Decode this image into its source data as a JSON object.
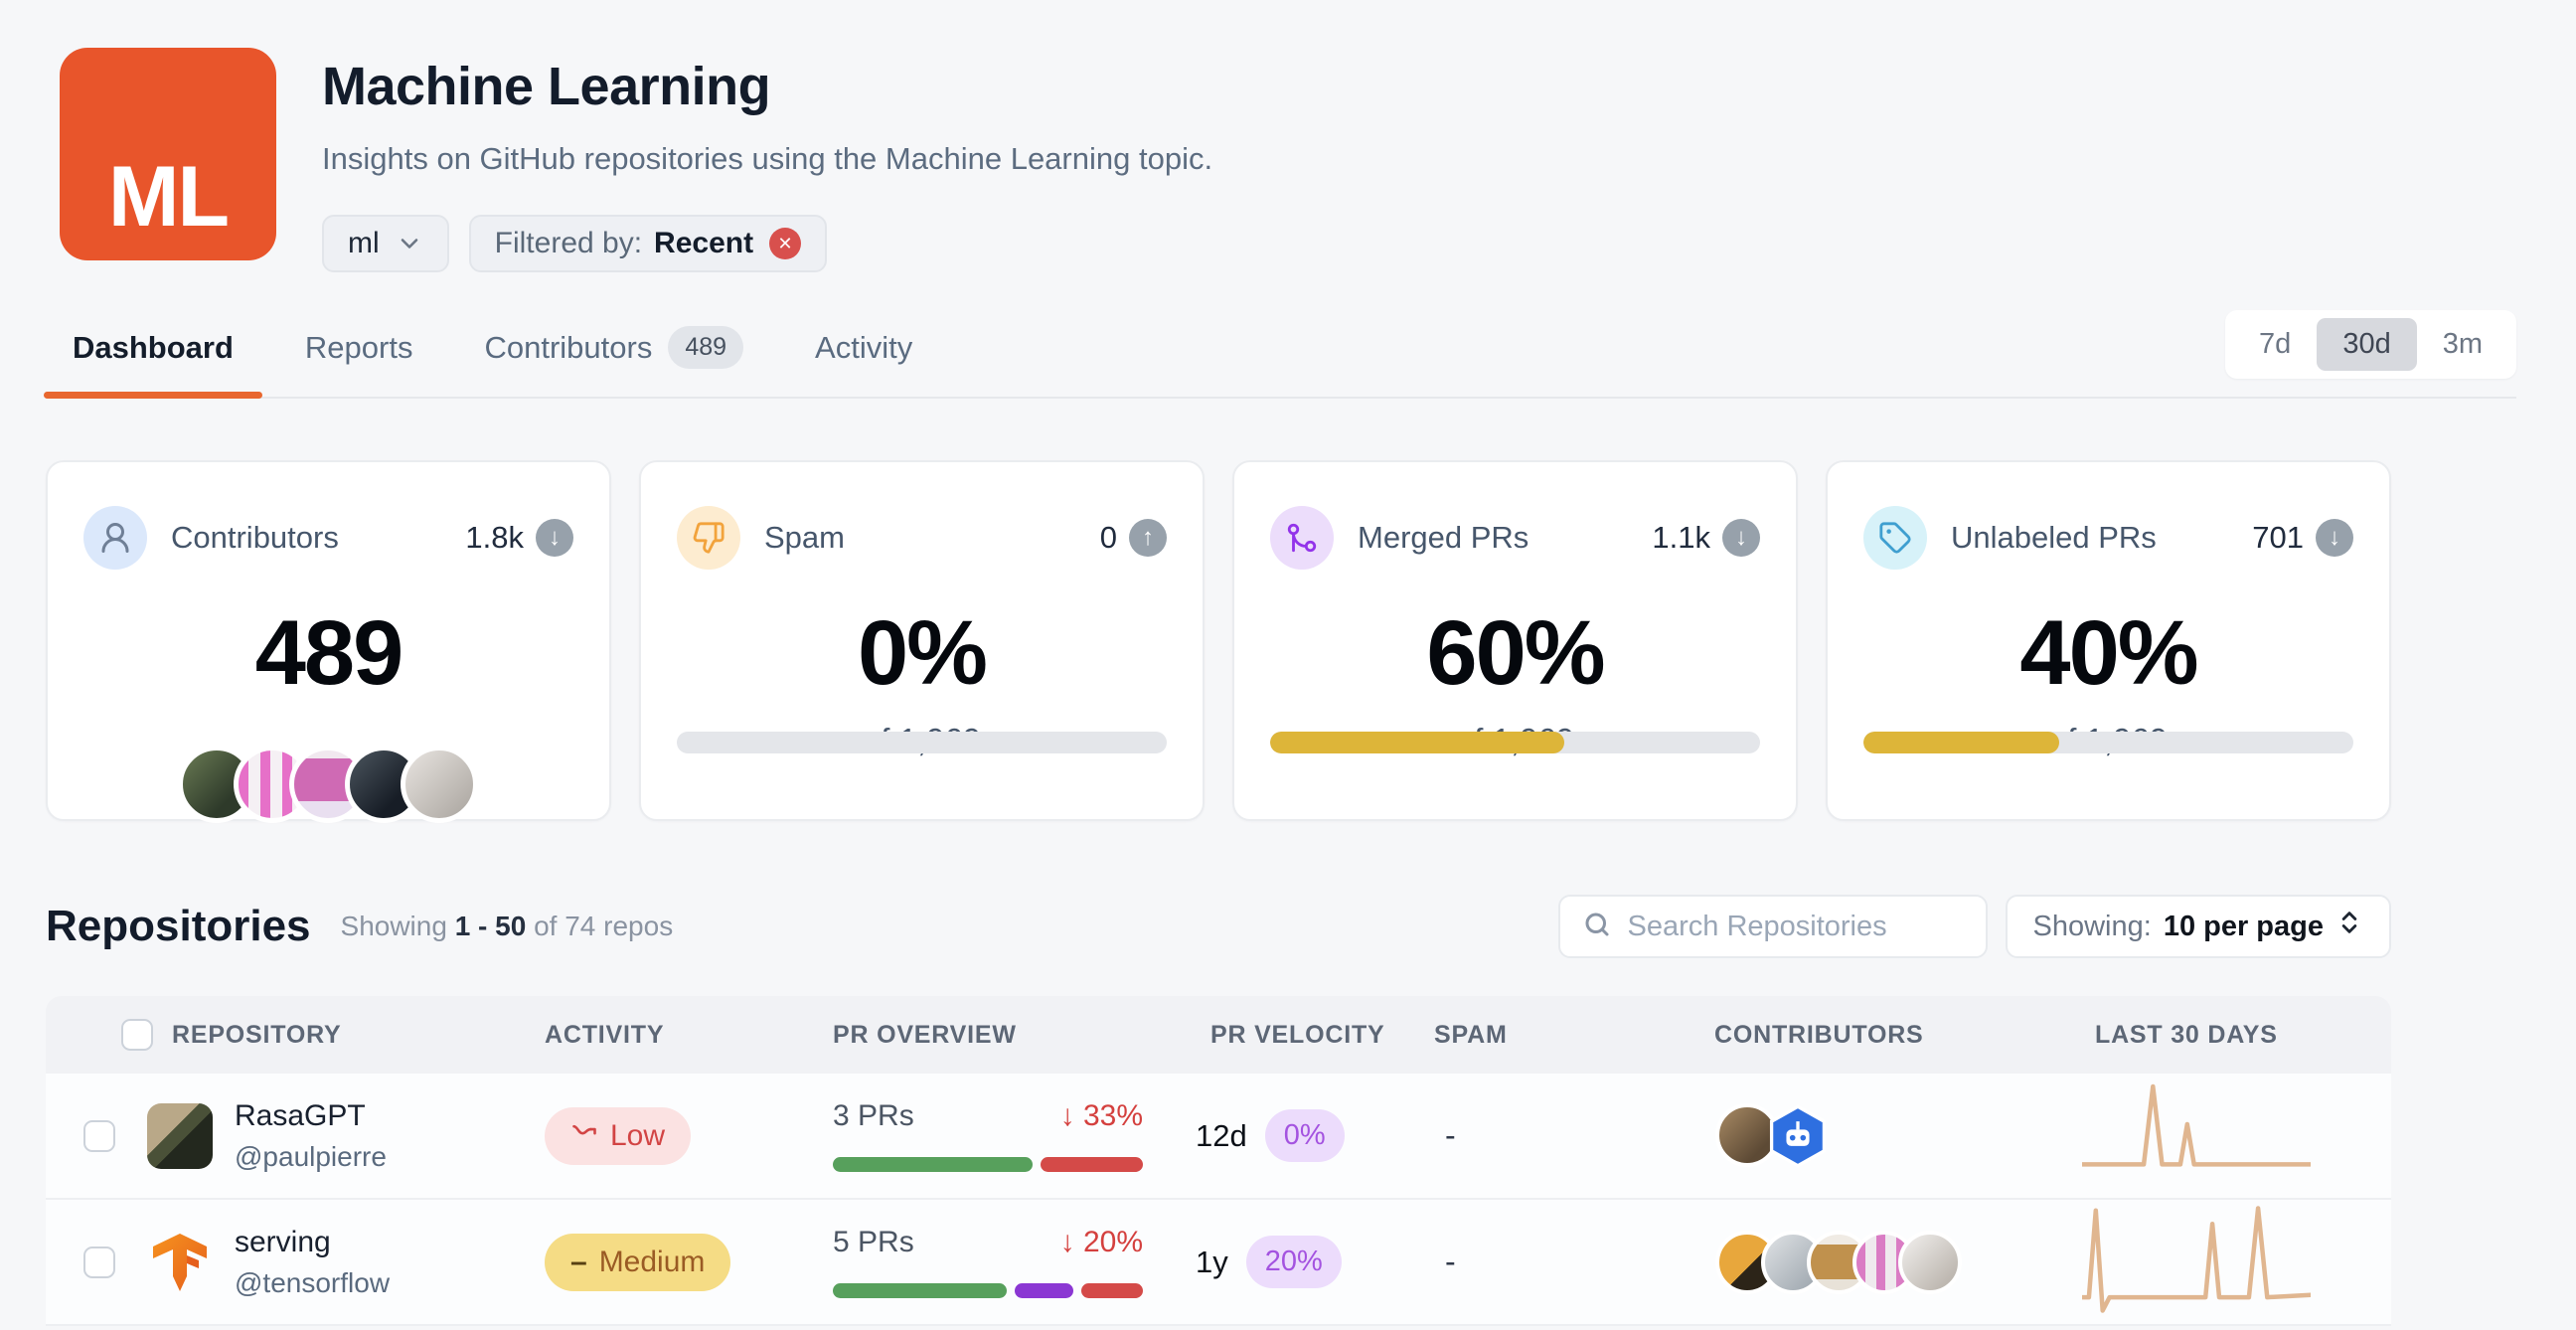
{
  "header": {
    "logo_text": "ML",
    "title": "Machine Learning",
    "subtitle": "Insights on GitHub repositories using the Machine Learning topic.",
    "topic_selector": {
      "value": "ml",
      "icon": "chevron-down-icon"
    },
    "filter_chip": {
      "label": "Filtered by:",
      "value": "Recent",
      "icon": "close-icon"
    }
  },
  "tabs": [
    {
      "label": "Dashboard",
      "active": true
    },
    {
      "label": "Reports",
      "active": false
    },
    {
      "label": "Contributors",
      "badge": "489",
      "active": false
    },
    {
      "label": "Activity",
      "active": false
    }
  ],
  "time_range": {
    "options": [
      {
        "label": "7d",
        "selected": false
      },
      {
        "label": "30d",
        "selected": true
      },
      {
        "label": "3m",
        "selected": false
      }
    ]
  },
  "stat_cards": [
    {
      "label": "Contributors",
      "icon": "person-icon",
      "total": "1.8k",
      "trend": "down",
      "trend_glyph": "↓",
      "value": "489"
    },
    {
      "label": "Spam",
      "icon": "thumbs-down-icon",
      "total": "0",
      "trend": "up",
      "trend_glyph": "↑",
      "value": "0%",
      "of": "of 1,969",
      "progress_pct": 0
    },
    {
      "label": "Merged PRs",
      "icon": "git-merge-icon",
      "total": "1.1k",
      "trend": "down",
      "trend_glyph": "↓",
      "value": "60%",
      "of": "of 1,969",
      "progress_pct": 60
    },
    {
      "label": "Unlabeled PRs",
      "icon": "tag-icon",
      "total": "701",
      "trend": "down",
      "trend_glyph": "↓",
      "value": "40%",
      "of": "of 1,969",
      "progress_pct": 40
    }
  ],
  "repositories": {
    "heading": "Repositories",
    "showing": {
      "prefix": "Showing",
      "range": "1 - 50",
      "suffix": "of 74 repos"
    },
    "search": {
      "placeholder": "Search Repositories",
      "icon": "search-icon"
    },
    "per_page": {
      "label": "Showing:",
      "value": "10 per page",
      "icon": "chevrons-up-down-icon"
    },
    "columns": [
      "REPOSITORY",
      "ACTIVITY",
      "PR OVERVIEW",
      "PR VELOCITY",
      "SPAM",
      "CONTRIBUTORS",
      "LAST 30 DAYS"
    ],
    "rows": [
      {
        "name": "RasaGPT",
        "owner": "@paulpierre",
        "activity": {
          "label": "Low",
          "level": "low",
          "icon": "trending-down-icon"
        },
        "pr_overview": {
          "count": "3 PRs",
          "direction": "down",
          "arrow": "↓",
          "change": "33%",
          "segments": {
            "green": 66,
            "purple": 0,
            "red": 34
          }
        },
        "velocity": {
          "time": "12d",
          "pct": "0%"
        },
        "spam": "-",
        "contributors": {
          "count": 2,
          "kinds": [
            "user-avatar",
            "bot-avatar"
          ]
        },
        "sparkline": [
          [
            0,
            78
          ],
          [
            27,
            78
          ],
          [
            31,
            8
          ],
          [
            35,
            78
          ],
          [
            43,
            78
          ],
          [
            46,
            42
          ],
          [
            49,
            78
          ],
          [
            100,
            78
          ]
        ]
      },
      {
        "name": "serving",
        "owner": "@tensorflow",
        "activity": {
          "label": "Medium",
          "level": "medium",
          "icon": "minus-icon",
          "minus_glyph": "–"
        },
        "pr_overview": {
          "count": "5 PRs",
          "direction": "down",
          "arrow": "↓",
          "change": "20%",
          "segments": {
            "green": 59,
            "purple": 20,
            "red": 21
          }
        },
        "velocity": {
          "time": "1y",
          "pct": "20%"
        },
        "spam": "-",
        "contributors": {
          "count": 5,
          "kinds": [
            "user-avatar",
            "user-avatar",
            "user-avatar",
            "user-avatar",
            "user-avatar"
          ]
        },
        "sparkline": [
          [
            0,
            84
          ],
          [
            3,
            84
          ],
          [
            6,
            6
          ],
          [
            9,
            96
          ],
          [
            12,
            84
          ],
          [
            54,
            84
          ],
          [
            57,
            18
          ],
          [
            60,
            84
          ],
          [
            73,
            84
          ],
          [
            77,
            4
          ],
          [
            81,
            84
          ],
          [
            100,
            82
          ]
        ]
      }
    ]
  },
  "colors": {
    "accent_orange": "#E8552B",
    "tab_underline": "#E8672F",
    "progress_yellow": "#DDB539",
    "bar_green": "#57A05C",
    "bar_purple": "#8B37D3",
    "bar_red": "#D44A48",
    "sparkline": "#E0B690",
    "badge_low_bg": "#FBE2E2",
    "badge_low_text": "#D24444",
    "badge_medium_bg": "#F5DC85",
    "badge_medium_text": "#9A5B24",
    "velocity_pill_bg": "#ECDCFC",
    "velocity_pill_text": "#A453E0"
  }
}
